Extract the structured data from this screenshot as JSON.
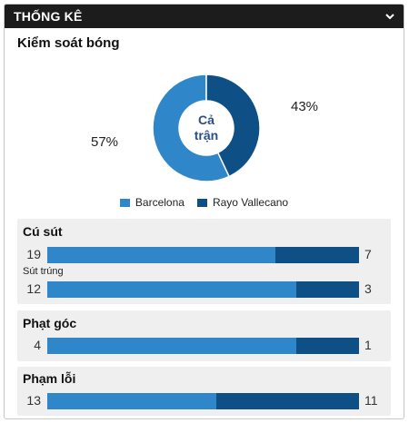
{
  "header": {
    "title": "THỐNG KÊ"
  },
  "possession": {
    "title": "Kiểm soát bóng",
    "center_line1": "Cả",
    "center_line2": "trận",
    "home_pct": "57%",
    "away_pct": "43%"
  },
  "teams": {
    "home": {
      "name": "Barcelona",
      "color": "#2f86c9"
    },
    "away": {
      "name": "Rayo Vallecano",
      "color": "#0e4f86"
    }
  },
  "chart_data": {
    "type": "pie",
    "categories": [
      "Barcelona",
      "Rayo Vallecano"
    ],
    "values": [
      57,
      43
    ]
  },
  "stats": {
    "shots": {
      "label": "Cú sút",
      "home": "19",
      "away": "7"
    },
    "shots_on_target": {
      "label": "Sút trúng",
      "home": "12",
      "away": "3"
    },
    "corners": {
      "label": "Phạt góc",
      "home": "4",
      "away": "1"
    },
    "fouls": {
      "label": "Phạm lỗi",
      "home": "13",
      "away": "11"
    }
  }
}
